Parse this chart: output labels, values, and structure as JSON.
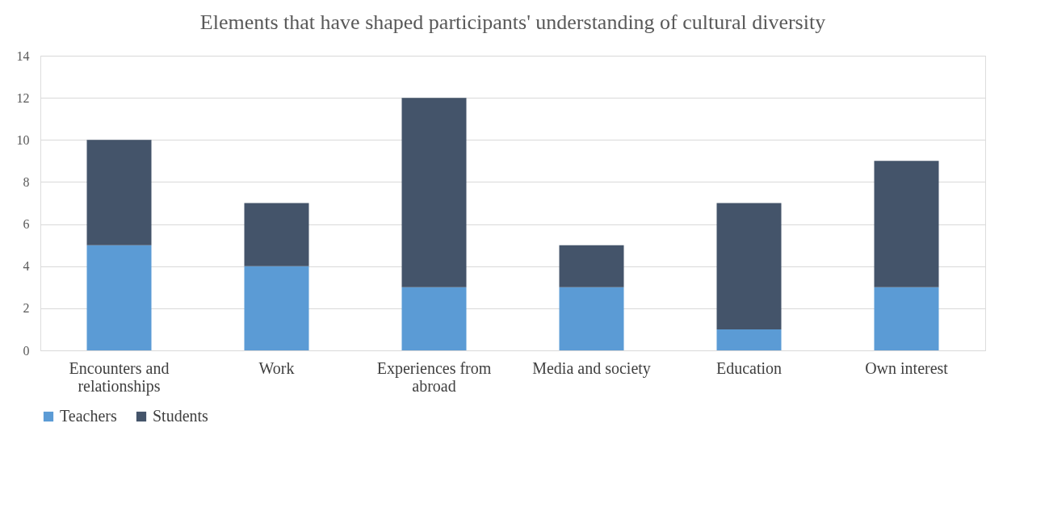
{
  "chart_data": {
    "type": "bar",
    "title": "Elements that have shaped participants' understanding of cultural diversity",
    "categories": [
      "Encounters and relationships",
      "Work",
      "Experiences from abroad",
      "Media and society",
      "Education",
      "Own interest"
    ],
    "series": [
      {
        "name": "Teachers",
        "color": "#5b9bd5",
        "values": [
          5,
          4,
          3,
          3,
          1,
          3
        ]
      },
      {
        "name": "Students",
        "color": "#44546a",
        "values": [
          5,
          3,
          9,
          2,
          6,
          6
        ]
      }
    ],
    "stacked": true,
    "ylim": [
      0,
      14
    ],
    "yticks": [
      0,
      2,
      4,
      6,
      8,
      10,
      12,
      14
    ],
    "grid": "y",
    "legend": "bottom"
  }
}
